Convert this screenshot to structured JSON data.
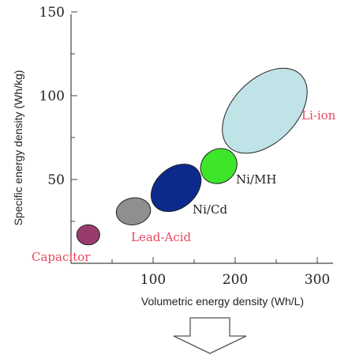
{
  "chart_data": {
    "type": "scatter",
    "title": "",
    "xlabel": "Volumetric energy density (Wh/L)",
    "ylabel": "Specific energy density (Wh/kg)",
    "xlim": [
      0,
      320
    ],
    "ylim": [
      0,
      150
    ],
    "xticks": [
      100,
      200,
      300
    ],
    "yticks": [
      50,
      100,
      150
    ],
    "xtick_labels": [
      "100",
      "200",
      "300"
    ],
    "ytick_labels": [
      "50",
      "100",
      "150"
    ],
    "grid": false,
    "regions": [
      {
        "name": "Capacitor",
        "x": 21,
        "y": 17,
        "rx": 14,
        "ry": 6,
        "angle": 0,
        "color": "#9a3b6e",
        "label_color": "red"
      },
      {
        "name": "Lead-Acid",
        "x": 76,
        "y": 31,
        "rx": 21,
        "ry": 8,
        "angle": -10,
        "color": "#8f8f8f",
        "label_color": "red"
      },
      {
        "name": "Ni/Cd",
        "x": 128,
        "y": 45,
        "rx": 34,
        "ry": 12,
        "angle": -40,
        "color": "#0b2a8c",
        "label_color": "black"
      },
      {
        "name": "Ni/MH",
        "x": 180,
        "y": 58,
        "rx": 23,
        "ry": 10,
        "angle": -35,
        "color": "#3ee62a",
        "label_color": "black"
      },
      {
        "name": "Li-ion",
        "x": 236,
        "y": 91,
        "rx": 62,
        "ry": 19,
        "angle": -45,
        "color": "#bfe3e6",
        "label_color": "red"
      }
    ]
  }
}
